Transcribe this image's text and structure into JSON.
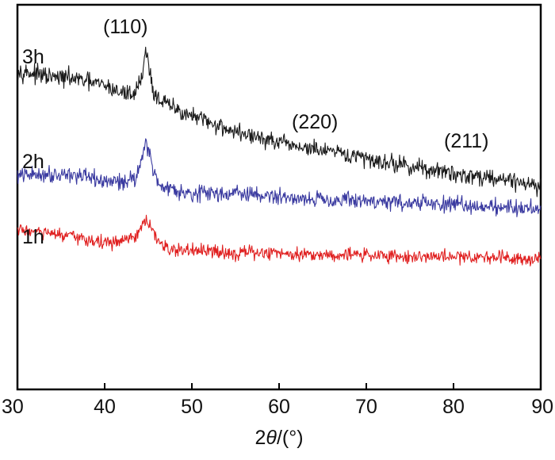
{
  "chart_data": {
    "type": "line",
    "xlabel_prefix": "2",
    "xlabel_symbol": "θ",
    "xlabel_suffix": "/(°)",
    "ylabel": "",
    "xlim": [
      30,
      90
    ],
    "xticks": [
      "30",
      "40",
      "50",
      "60",
      "70",
      "80",
      "90"
    ],
    "grid": false,
    "legend": "none",
    "series": [
      {
        "name": "3h",
        "color": "#1a1a1a",
        "x": [
          30,
          32,
          34,
          36,
          38,
          40,
          42,
          43.5,
          44.3,
          44.7,
          45.1,
          45.6,
          46.5,
          48,
          50,
          55,
          60,
          65,
          70,
          75,
          80,
          85,
          90
        ],
        "y": [
          0.83,
          0.82,
          0.81,
          0.81,
          0.8,
          0.79,
          0.77,
          0.77,
          0.82,
          0.88,
          0.84,
          0.77,
          0.75,
          0.73,
          0.71,
          0.67,
          0.64,
          0.62,
          0.6,
          0.58,
          0.56,
          0.55,
          0.53
        ],
        "noise": 0.014
      },
      {
        "name": "2h",
        "color": "#3a3aa0",
        "x": [
          30,
          33,
          36,
          38,
          40,
          42,
          43.5,
          44.3,
          44.7,
          45.1,
          45.6,
          46.5,
          48,
          50,
          55,
          60,
          65,
          70,
          75,
          80,
          85,
          90
        ],
        "y": [
          0.555,
          0.56,
          0.56,
          0.55,
          0.54,
          0.54,
          0.55,
          0.6,
          0.65,
          0.62,
          0.56,
          0.53,
          0.52,
          0.51,
          0.51,
          0.5,
          0.495,
          0.49,
          0.485,
          0.48,
          0.475,
          0.47
        ],
        "noise": 0.013
      },
      {
        "name": "1h",
        "color": "#e02020",
        "x": [
          30,
          32,
          35,
          38,
          40,
          42,
          43.5,
          44.3,
          44.8,
          45.3,
          46,
          47,
          50,
          55,
          60,
          65,
          70,
          75,
          80,
          85,
          90
        ],
        "y": [
          0.415,
          0.41,
          0.4,
          0.39,
          0.38,
          0.385,
          0.395,
          0.42,
          0.44,
          0.42,
          0.39,
          0.365,
          0.36,
          0.355,
          0.355,
          0.35,
          0.35,
          0.345,
          0.345,
          0.345,
          0.34
        ],
        "noise": 0.011
      }
    ],
    "annotations": [
      {
        "text": "(110)",
        "x": 44.8,
        "series": "3h"
      },
      {
        "text": "(220)",
        "x": 65,
        "series": "3h"
      },
      {
        "text": "(211)",
        "x": 82,
        "series": "3h"
      }
    ]
  }
}
